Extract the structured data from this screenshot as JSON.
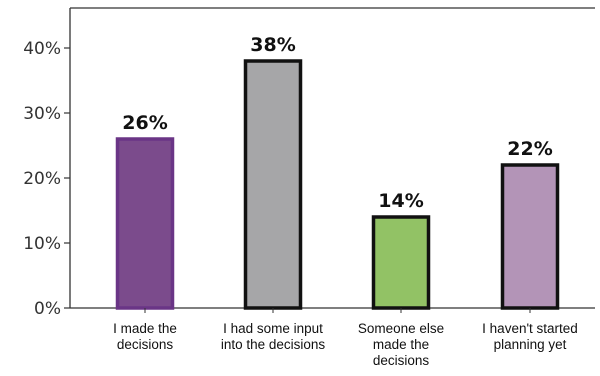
{
  "chart_data": {
    "type": "bar",
    "categories": [
      [
        "I made the",
        "decisions"
      ],
      [
        "I had some input",
        "into the decisions"
      ],
      [
        "Someone else",
        "made the",
        "decisions"
      ],
      [
        "I haven't started",
        "planning yet"
      ]
    ],
    "values": [
      26,
      38,
      14,
      22
    ],
    "data_labels": [
      "26%",
      "38%",
      "14%",
      "22%"
    ],
    "bar_colors": [
      "#7b4b8c",
      "#a6a6a8",
      "#92c265",
      "#b394b7"
    ],
    "bar_outline_colors": [
      "#6a3586",
      "#111111",
      "#111111",
      "#111111"
    ],
    "yticks": [
      0,
      10,
      20,
      30,
      40
    ],
    "ytick_labels": [
      "0%",
      "10%",
      "20%",
      "30%",
      "40%"
    ],
    "ylim": [
      0,
      46
    ],
    "grid": false,
    "title": "",
    "xlabel": "",
    "ylabel": ""
  }
}
